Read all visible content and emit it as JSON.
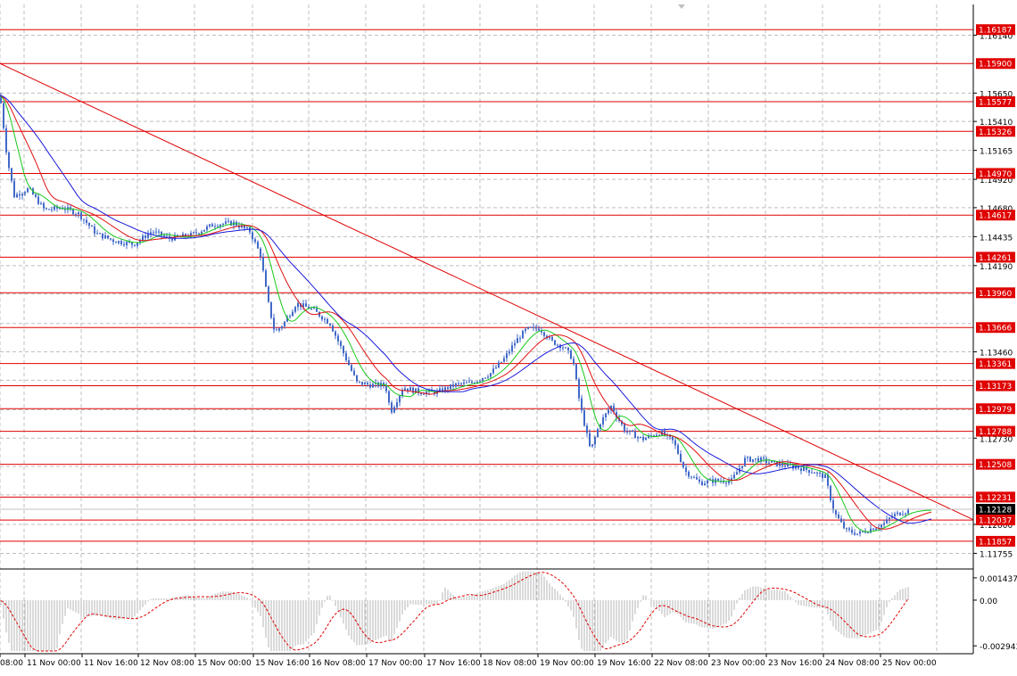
{
  "chart_data": {
    "type": "candlestick",
    "title": "",
    "grid": true,
    "legend": "none",
    "colors": {
      "candle": "#4169c8",
      "ma_fast": "#19c819",
      "ma_mid": "#e01010",
      "ma_slow": "#1a1adc",
      "level_line": "#e00000",
      "trendline": "#e00000",
      "level_label_bg": "#e00000",
      "current_price_bg": "#000000",
      "histogram": "#b4b4b4",
      "signal": "#e00000",
      "grid": "#bfbfbf"
    },
    "price_axis": {
      "min": 1.1163,
      "max": 1.164,
      "ticks": [
        "1.16140",
        "1.15650",
        "1.15410",
        "1.15165",
        "1.14920",
        "1.14680",
        "1.14435",
        "1.14190",
        "1.13460",
        "1.12730",
        "1.12000",
        "1.11755"
      ]
    },
    "time_axis": {
      "labels": [
        "08:00",
        "11 Nov 00:00",
        "11 Nov 16:00",
        "12 Nov 08:00",
        "15 Nov 00:00",
        "15 Nov 16:00",
        "16 Nov 08:00",
        "17 Nov 00:00",
        "17 Nov 16:00",
        "18 Nov 08:00",
        "19 Nov 00:00",
        "19 Nov 16:00",
        "22 Nov 08:00",
        "23 Nov 00:00",
        "23 Nov 16:00",
        "24 Nov 08:00",
        "25 Nov 00:00"
      ]
    },
    "levels": [
      "1.16187",
      "1.15900",
      "1.15577",
      "1.15326",
      "1.14970",
      "1.14617",
      "1.14261",
      "1.13960",
      "1.13666",
      "1.13361",
      "1.13173",
      "1.12979",
      "1.12788",
      "1.12508",
      "1.12231",
      "1.12037",
      "1.11857"
    ],
    "current_price": "1.12128",
    "trendline": {
      "from": {
        "bar": 0,
        "price": 1.159
      },
      "to": {
        "bar": 1091,
        "price": 1.1204
      }
    },
    "price_path": [
      [
        0,
        1.1563
      ],
      [
        8,
        1.151
      ],
      [
        16,
        1.1478
      ],
      [
        32,
        1.1484
      ],
      [
        50,
        1.1466
      ],
      [
        70,
        1.1468
      ],
      [
        88,
        1.1463
      ],
      [
        108,
        1.1446
      ],
      [
        128,
        1.144
      ],
      [
        150,
        1.1437
      ],
      [
        170,
        1.1448
      ],
      [
        190,
        1.1442
      ],
      [
        215,
        1.1445
      ],
      [
        240,
        1.1454
      ],
      [
        262,
        1.1455
      ],
      [
        280,
        1.1448
      ],
      [
        292,
        1.1428
      ],
      [
        300,
        1.139
      ],
      [
        308,
        1.1362
      ],
      [
        318,
        1.137
      ],
      [
        332,
        1.1387
      ],
      [
        350,
        1.1382
      ],
      [
        370,
        1.137
      ],
      [
        385,
        1.1345
      ],
      [
        400,
        1.132
      ],
      [
        415,
        1.1318
      ],
      [
        432,
        1.1318
      ],
      [
        438,
        1.1295
      ],
      [
        452,
        1.1316
      ],
      [
        470,
        1.1312
      ],
      [
        490,
        1.1312
      ],
      [
        510,
        1.1318
      ],
      [
        530,
        1.132
      ],
      [
        550,
        1.1328
      ],
      [
        565,
        1.134
      ],
      [
        578,
        1.1355
      ],
      [
        590,
        1.1365
      ],
      [
        605,
        1.1366
      ],
      [
        618,
        1.1355
      ],
      [
        632,
        1.135
      ],
      [
        642,
        1.134
      ],
      [
        650,
        1.1302
      ],
      [
        662,
        1.1262
      ],
      [
        672,
        1.1285
      ],
      [
        685,
        1.13
      ],
      [
        700,
        1.128
      ],
      [
        720,
        1.1272
      ],
      [
        740,
        1.1278
      ],
      [
        755,
        1.127
      ],
      [
        768,
        1.1245
      ],
      [
        785,
        1.1235
      ],
      [
        800,
        1.1237
      ],
      [
        820,
        1.1237
      ],
      [
        835,
        1.1255
      ],
      [
        850,
        1.1255
      ],
      [
        865,
        1.1252
      ],
      [
        880,
        1.125
      ],
      [
        895,
        1.1248
      ],
      [
        910,
        1.1245
      ],
      [
        925,
        1.124
      ],
      [
        935,
        1.121
      ],
      [
        948,
        1.1195
      ],
      [
        962,
        1.1192
      ],
      [
        975,
        1.1196
      ],
      [
        990,
        1.12
      ],
      [
        1000,
        1.1207
      ],
      [
        1010,
        1.121
      ],
      [
        1020,
        1.1212
      ]
    ],
    "oscillator": {
      "ticks": [
        "0.001437",
        "0.00",
        "-0.002943"
      ],
      "min": -0.00345,
      "max": 0.00195
    }
  }
}
